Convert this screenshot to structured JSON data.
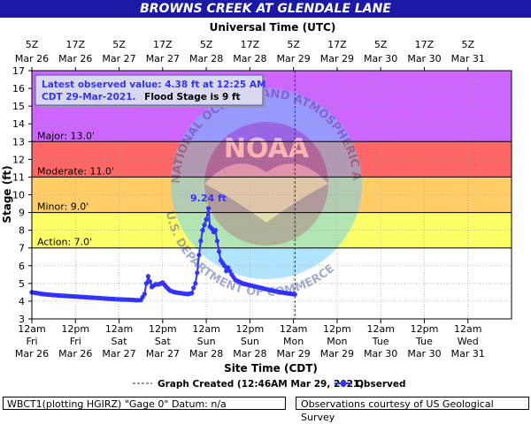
{
  "title": "BROWNS CREEK AT GLENDALE LANE",
  "footer": {
    "left": "WBCT1(plotting HGIRZ) \"Gage 0\" Datum: n/a",
    "right": "Observations courtesy of US Geological Survey"
  },
  "chart_data": {
    "type": "line",
    "top_axis_title": "Universal Time (UTC)",
    "xlabel": "Site Time (CDT)",
    "ylabel": "Stage (ft)",
    "ylim": [
      3,
      17
    ],
    "xlim_hours": [
      0,
      132
    ],
    "y_ticks": [
      3,
      4,
      5,
      6,
      7,
      8,
      9,
      10,
      11,
      12,
      13,
      14,
      15,
      16,
      17
    ],
    "bottom_ticks": [
      {
        "h": 0,
        "l1": "12am",
        "l2": "Fri",
        "l3": "Mar 26"
      },
      {
        "h": 12,
        "l1": "12pm",
        "l2": "Fri",
        "l3": "Mar 26"
      },
      {
        "h": 24,
        "l1": "12am",
        "l2": "Sat",
        "l3": "Mar 27"
      },
      {
        "h": 36,
        "l1": "12pm",
        "l2": "Sat",
        "l3": "Mar 27"
      },
      {
        "h": 48,
        "l1": "12am",
        "l2": "Sun",
        "l3": "Mar 28"
      },
      {
        "h": 60,
        "l1": "12pm",
        "l2": "Sun",
        "l3": "Mar 28"
      },
      {
        "h": 72,
        "l1": "12am",
        "l2": "Mon",
        "l3": "Mar 29"
      },
      {
        "h": 84,
        "l1": "12pm",
        "l2": "Mon",
        "l3": "Mar 29"
      },
      {
        "h": 96,
        "l1": "12am",
        "l2": "Tue",
        "l3": "Mar 30"
      },
      {
        "h": 108,
        "l1": "12pm",
        "l2": "Tue",
        "l3": "Mar 30"
      },
      {
        "h": 120,
        "l1": "12am",
        "l2": "Wed",
        "l3": "Mar 31"
      }
    ],
    "top_ticks": [
      {
        "h": 0,
        "l1": "5Z",
        "l2": "Mar 26"
      },
      {
        "h": 12,
        "l1": "17Z",
        "l2": "Mar 26"
      },
      {
        "h": 24,
        "l1": "5Z",
        "l2": "Mar 27"
      },
      {
        "h": 36,
        "l1": "17Z",
        "l2": "Mar 27"
      },
      {
        "h": 48,
        "l1": "5Z",
        "l2": "Mar 28"
      },
      {
        "h": 60,
        "l1": "17Z",
        "l2": "Mar 28"
      },
      {
        "h": 72,
        "l1": "5Z",
        "l2": "Mar 29"
      },
      {
        "h": 84,
        "l1": "17Z",
        "l2": "Mar 29"
      },
      {
        "h": 96,
        "l1": "5Z",
        "l2": "Mar 30"
      },
      {
        "h": 108,
        "l1": "17Z",
        "l2": "Mar 30"
      },
      {
        "h": 120,
        "l1": "5Z",
        "l2": "Mar 31"
      }
    ],
    "flood_bands": [
      {
        "name": "Action",
        "label": "Action: 7.0'",
        "from": 7,
        "to": 9,
        "color": "#ffff66"
      },
      {
        "name": "Minor",
        "label": "Minor: 9.0'",
        "from": 9,
        "to": 11,
        "color": "#ffcc66"
      },
      {
        "name": "Moderate",
        "label": "Moderate: 11.0'",
        "from": 11,
        "to": 13,
        "color": "#ff6666"
      },
      {
        "name": "Major",
        "label": "Major: 13.0'",
        "from": 13,
        "to": 17,
        "color": "#cc66ff"
      }
    ],
    "annotation": {
      "line1": "Latest observed value: 4.38 ft at 12:25 AM",
      "line2a": "CDT 29-Mar-2021.",
      "line2b": "Flood Stage is 9 ft"
    },
    "peak": {
      "h": 48.6,
      "value": 9.24,
      "label": "9.24 ft"
    },
    "graph_created": {
      "h": 72.4,
      "label": "Graph Created (12:46AM Mar 29, 2021)"
    },
    "legend_observed": "Observed",
    "watermark": {
      "logo": "NOAA",
      "arc_top": "NATIONAL OCEANIC AND ATMOSPHERIC ADMINISTRATION",
      "arc_bottom": "U.S. DEPARTMENT OF COMMERCE"
    },
    "series": [
      {
        "name": "Observed",
        "color": "#3333ff",
        "points": [
          [
            0,
            4.5
          ],
          [
            3,
            4.4
          ],
          [
            6,
            4.34
          ],
          [
            9,
            4.3
          ],
          [
            12,
            4.26
          ],
          [
            15,
            4.22
          ],
          [
            18,
            4.18
          ],
          [
            21,
            4.14
          ],
          [
            24,
            4.1
          ],
          [
            27,
            4.08
          ],
          [
            29,
            4.05
          ],
          [
            30,
            4.06
          ],
          [
            31,
            4.4
          ],
          [
            31.5,
            5.0
          ],
          [
            32,
            5.4
          ],
          [
            32.5,
            5.1
          ],
          [
            33,
            4.8
          ],
          [
            34,
            4.95
          ],
          [
            35,
            4.95
          ],
          [
            36,
            5.05
          ],
          [
            37,
            4.8
          ],
          [
            38,
            4.6
          ],
          [
            39,
            4.52
          ],
          [
            40,
            4.48
          ],
          [
            41,
            4.45
          ],
          [
            42,
            4.42
          ],
          [
            43,
            4.4
          ],
          [
            44,
            4.45
          ],
          [
            44.5,
            4.75
          ],
          [
            45,
            5.0
          ],
          [
            45.5,
            5.6
          ],
          [
            46,
            6.6
          ],
          [
            46.5,
            7.4
          ],
          [
            47,
            8.0
          ],
          [
            47.5,
            8.3
          ],
          [
            48,
            8.6
          ],
          [
            48.6,
            9.24
          ],
          [
            49,
            8.2
          ],
          [
            49.5,
            8.1
          ],
          [
            50,
            7.9
          ],
          [
            50.5,
            8.0
          ],
          [
            51,
            7.4
          ],
          [
            51.5,
            6.8
          ],
          [
            52,
            6.3
          ],
          [
            53,
            6.0
          ],
          [
            53.5,
            5.7
          ],
          [
            54,
            5.9
          ],
          [
            55,
            5.5
          ],
          [
            56,
            5.2
          ],
          [
            58,
            5.0
          ],
          [
            60,
            4.9
          ],
          [
            62,
            4.8
          ],
          [
            64,
            4.7
          ],
          [
            66,
            4.6
          ],
          [
            68,
            4.52
          ],
          [
            70,
            4.45
          ],
          [
            72,
            4.4
          ],
          [
            72.4,
            4.38
          ]
        ]
      }
    ]
  }
}
